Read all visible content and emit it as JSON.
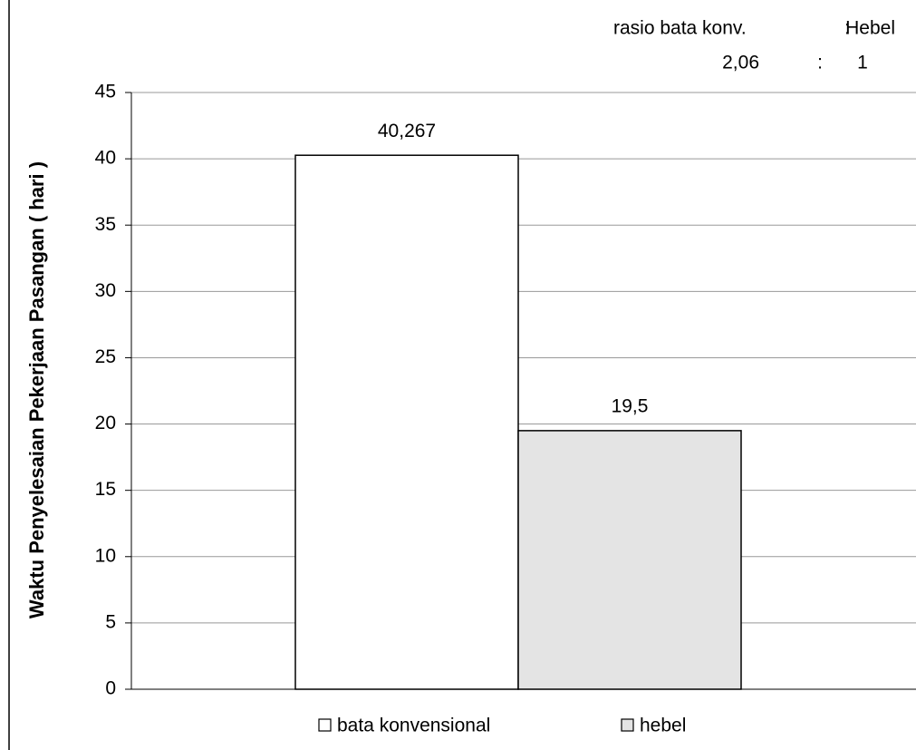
{
  "chart_data": {
    "type": "bar",
    "y_label": "Waktu Penyelesaian Pekerjaan Pasangan  ( hari )",
    "annotations": [
      "rasio bata konv.",
      ":",
      "Hebel",
      "2,06",
      ":",
      "1"
    ],
    "series": [
      {
        "name": "bata konvensional",
        "color": "#ffffff",
        "values": [
          40.267
        ],
        "value_labels": [
          "40,267"
        ]
      },
      {
        "name": "hebel",
        "color": "#e4e4e4",
        "values": [
          19.5
        ],
        "value_labels": [
          "19,5"
        ]
      }
    ],
    "ylim": [
      0,
      45
    ],
    "yticks": [
      0,
      5,
      10,
      15,
      20,
      25,
      30,
      35,
      40,
      45
    ],
    "grid": true
  }
}
